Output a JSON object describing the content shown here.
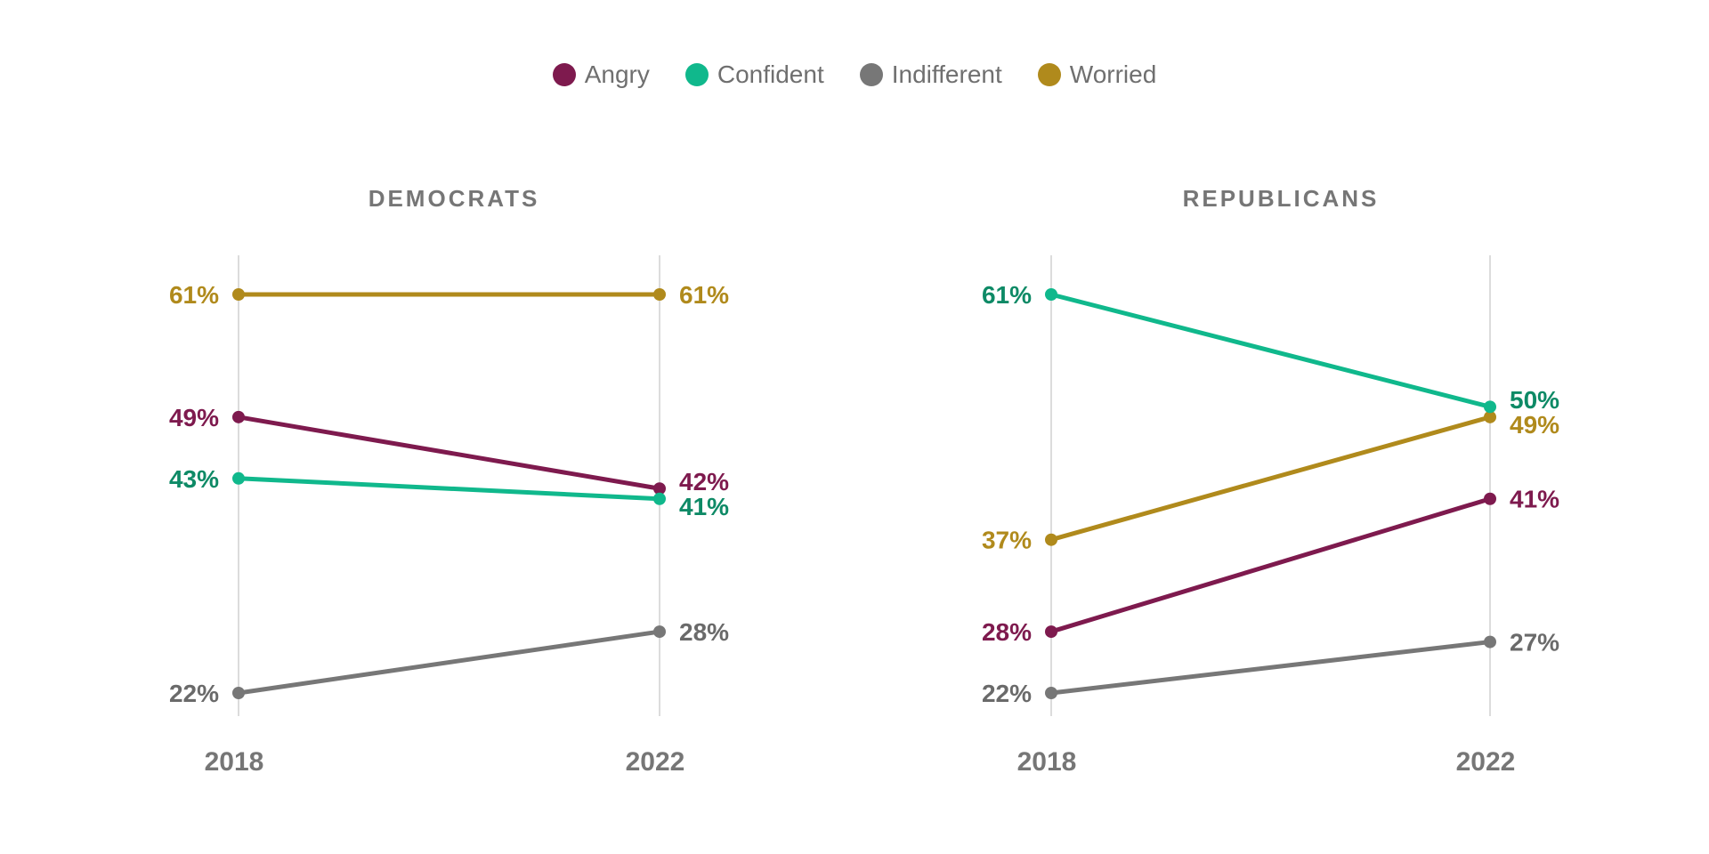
{
  "legend": {
    "items": [
      {
        "label": "Angry",
        "color": "#7e1a4e"
      },
      {
        "label": "Confident",
        "color": "#10b88c"
      },
      {
        "label": "Indifferent",
        "color": "#777777"
      },
      {
        "label": "Worried",
        "color": "#b08a1c"
      }
    ]
  },
  "label_colors": {
    "Angry": "#7e1a4e",
    "Confident": "#0e8a66",
    "Indifferent": "#6a6a6a",
    "Worried": "#b08a1c"
  },
  "chart_data": [
    {
      "type": "line",
      "title": "DEMOCRATS",
      "x": [
        "2018",
        "2022"
      ],
      "ylim": [
        22,
        61
      ],
      "series": [
        {
          "name": "Angry",
          "values": [
            49,
            42
          ],
          "labels": [
            "49%",
            "42%"
          ]
        },
        {
          "name": "Confident",
          "values": [
            43,
            41
          ],
          "labels": [
            "43%",
            "41%"
          ]
        },
        {
          "name": "Indifferent",
          "values": [
            22,
            28
          ],
          "labels": [
            "22%",
            "28%"
          ]
        },
        {
          "name": "Worried",
          "values": [
            61,
            61
          ],
          "labels": [
            "61%",
            "61%"
          ]
        }
      ]
    },
    {
      "type": "line",
      "title": "REPUBLICANS",
      "x": [
        "2018",
        "2022"
      ],
      "ylim": [
        22,
        61
      ],
      "series": [
        {
          "name": "Angry",
          "values": [
            28,
            41
          ],
          "labels": [
            "28%",
            "41%"
          ]
        },
        {
          "name": "Confident",
          "values": [
            61,
            50
          ],
          "labels": [
            "61%",
            "50%"
          ]
        },
        {
          "name": "Indifferent",
          "values": [
            22,
            27
          ],
          "labels": [
            "22%",
            "27%"
          ]
        },
        {
          "name": "Worried",
          "values": [
            37,
            49
          ],
          "labels": [
            "37%",
            "49%"
          ]
        }
      ]
    }
  ]
}
